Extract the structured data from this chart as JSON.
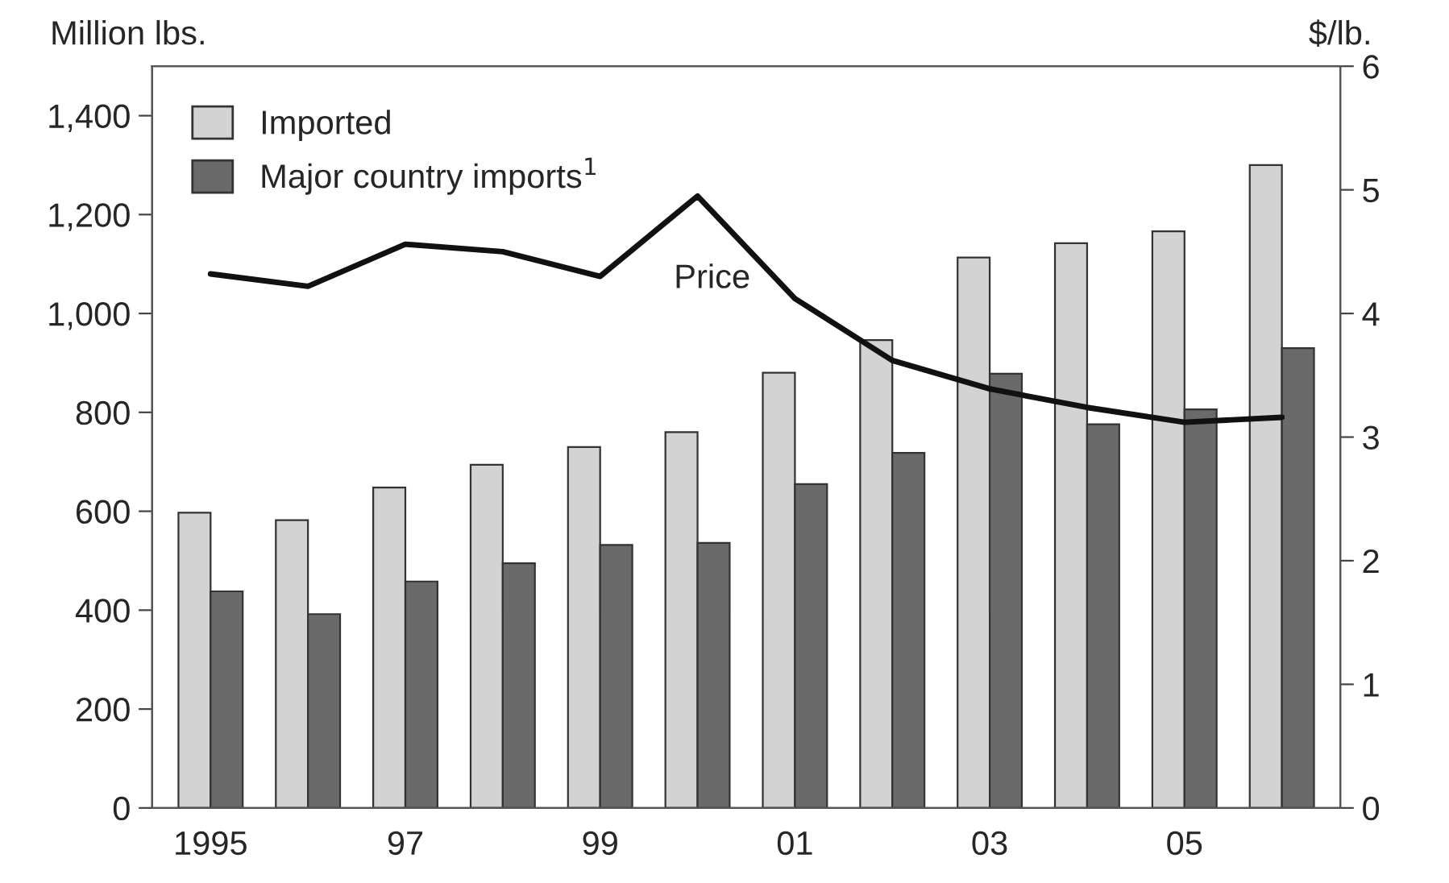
{
  "chart_data": {
    "type": "bar",
    "ylabel": "Million lbs.",
    "y2label": "$/lb.",
    "categories": [
      "1995",
      null,
      "97",
      null,
      "99",
      null,
      "01",
      null,
      "03",
      null,
      "05",
      null
    ],
    "series": [
      {
        "name": "Imported",
        "color": "#d3d3d3",
        "values": [
          597,
          582,
          648,
          694,
          730,
          760,
          880,
          946,
          1113,
          1142,
          1166,
          1300
        ]
      },
      {
        "name": "Major country imports$^{1}$",
        "color": "#6a6a6a",
        "values": [
          438,
          392,
          458,
          495,
          532,
          536,
          655,
          718,
          878,
          776,
          806,
          930
        ]
      },
      {
        "type": "line",
        "axis": "y2",
        "color": "#111111",
        "values": [
          4.32,
          4.22,
          4.56,
          4.5,
          4.3,
          4.95,
          4.12,
          3.62,
          3.39,
          3.24,
          3.12,
          3.16
        ]
      }
    ],
    "ylim": [
      0,
      1500
    ],
    "yticks": [
      0,
      200,
      400,
      600,
      800,
      {
        "value": 1000,
        "label": "1,000"
      },
      {
        "value": 1200,
        "label": "1,200"
      },
      {
        "value": 1400,
        "label": "1,400"
      }
    ],
    "y2lim": [
      0,
      6
    ],
    "y2ticks": [
      0,
      1,
      2,
      3,
      4,
      5,
      6
    ],
    "annotations": [
      {
        "text": "Price"
      }
    ],
    "legend": "top left",
    "grid": false
  }
}
